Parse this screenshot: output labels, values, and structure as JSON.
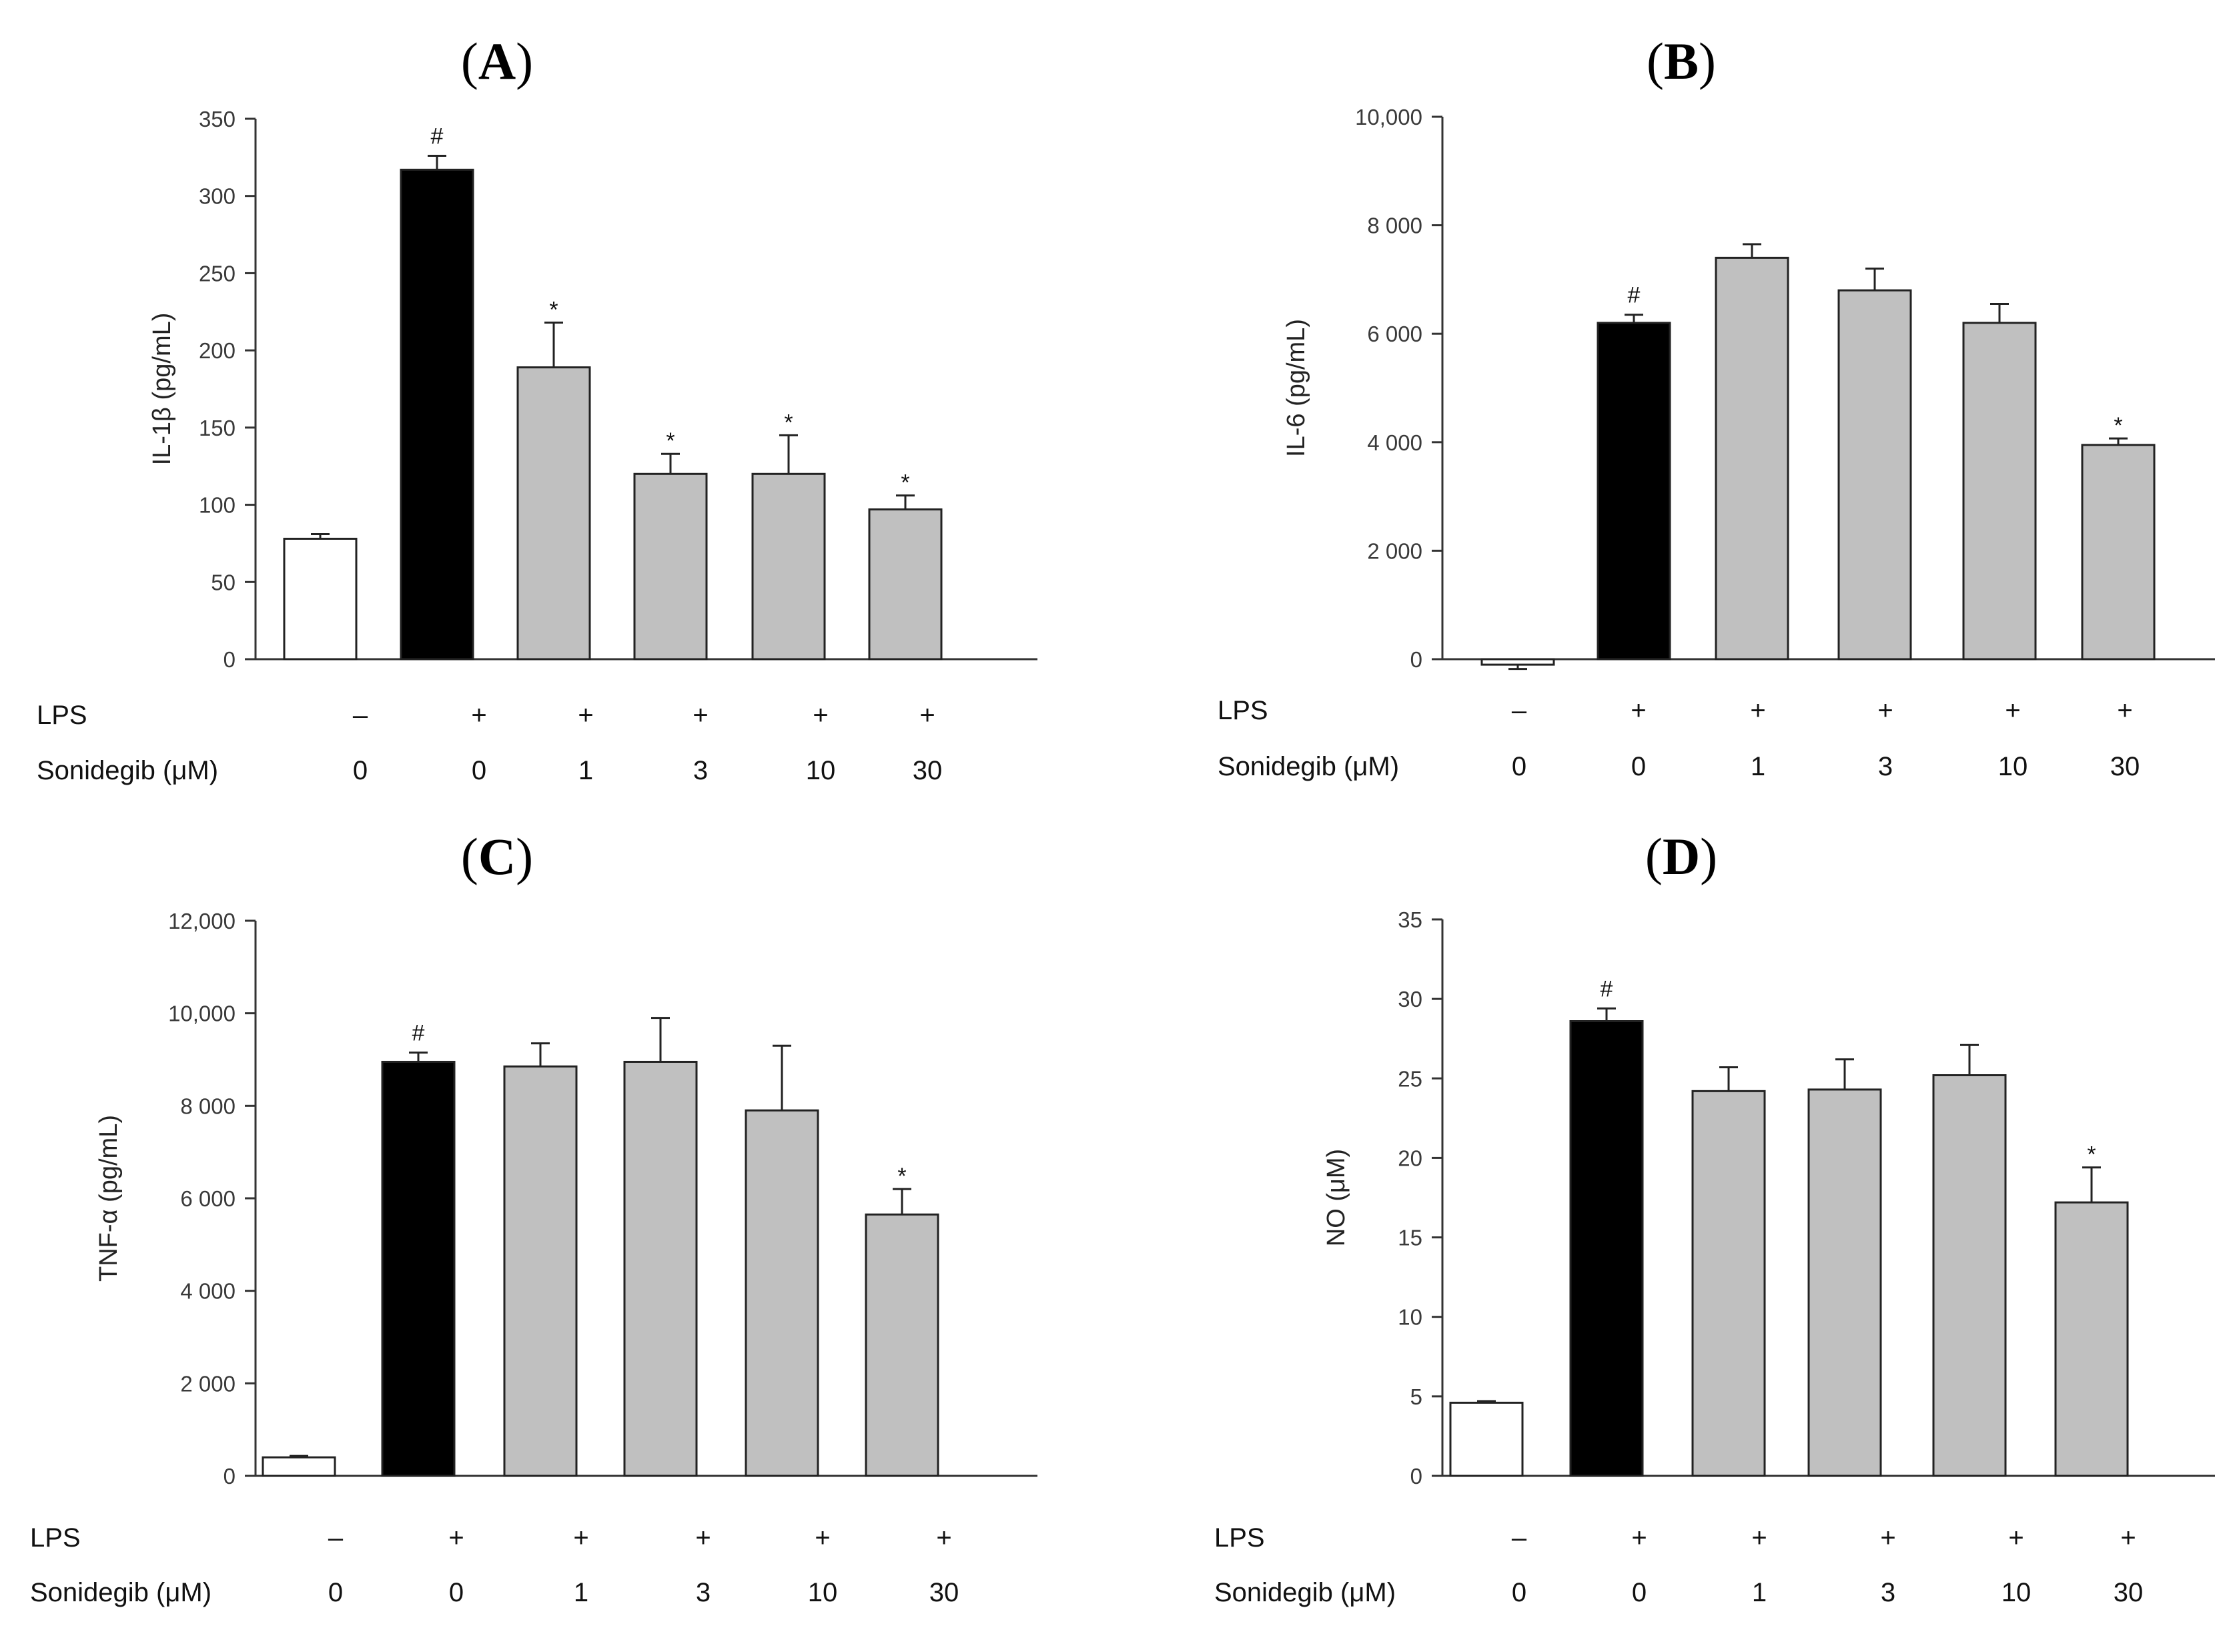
{
  "colors": {
    "control": "#ffffff",
    "lps": "#000000",
    "treatment": "#c0c0c0",
    "axis": "#333333"
  },
  "condition_rows": {
    "lps_label": "LPS",
    "sonidegib_label": "Sonidegib (μM)",
    "lps": [
      "–",
      "+",
      "+",
      "+",
      "+",
      "+"
    ],
    "sonidegib": [
      "0",
      "0",
      "1",
      "3",
      "10",
      "30"
    ]
  },
  "chart_data": [
    {
      "type": "bar",
      "panel": "A",
      "title": "(A)",
      "title_letter": "A",
      "ylabel": "IL-1β (pg/mL)",
      "ylim": [
        0,
        350
      ],
      "yticks": [
        0,
        50,
        100,
        150,
        200,
        250,
        300,
        350
      ],
      "ytick_labels": [
        "0",
        "50",
        "100",
        "150",
        "200",
        "250",
        "300",
        "350"
      ],
      "categories": [
        "Control",
        "LPS",
        "LPS + Sonidegib 1",
        "LPS + Sonidegib 3",
        "LPS + Sonidegib 10",
        "LPS + Sonidegib 30"
      ],
      "values": [
        78,
        317,
        189,
        120,
        120,
        97
      ],
      "errors": [
        3,
        9,
        29,
        13,
        25,
        9
      ],
      "fills": [
        "control",
        "lps",
        "treatment",
        "treatment",
        "treatment",
        "treatment"
      ],
      "significance": [
        "",
        "#",
        "*",
        "*",
        "*",
        "*"
      ]
    },
    {
      "type": "bar",
      "panel": "B",
      "title": "(B)",
      "title_letter": "B",
      "ylabel": "IL-6 (pg/mL)",
      "ylim": [
        0,
        10000
      ],
      "yticks": [
        0,
        2000,
        4000,
        6000,
        8000,
        10000
      ],
      "ytick_labels": [
        "0",
        "2 000",
        "4 000",
        "6 000",
        "8 000",
        "10,000"
      ],
      "categories": [
        "Control",
        "LPS",
        "LPS + Sonidegib 1",
        "LPS + Sonidegib 3",
        "LPS + Sonidegib 10",
        "LPS + Sonidegib 30"
      ],
      "values": [
        -100,
        6200,
        7400,
        6800,
        6200,
        3950
      ],
      "errors": [
        80,
        150,
        250,
        400,
        350,
        120
      ],
      "fills": [
        "control",
        "lps",
        "treatment",
        "treatment",
        "treatment",
        "treatment"
      ],
      "significance": [
        "",
        "#",
        "",
        "",
        "",
        "*"
      ]
    },
    {
      "type": "bar",
      "panel": "C",
      "title": "(C)",
      "title_letter": "C",
      "ylabel": "TNF-α (pg/mL)",
      "ylim": [
        0,
        12000
      ],
      "yticks": [
        0,
        2000,
        4000,
        6000,
        8000,
        10000,
        12000
      ],
      "ytick_labels": [
        "0",
        "2 000",
        "4 000",
        "6 000",
        "8 000",
        "10,000",
        "12,000"
      ],
      "categories": [
        "Control",
        "LPS",
        "LPS + Sonidegib 1",
        "LPS + Sonidegib 3",
        "LPS + Sonidegib 10",
        "LPS + Sonidegib 30"
      ],
      "values": [
        400,
        8950,
        8850,
        8950,
        7900,
        5650
      ],
      "errors": [
        30,
        200,
        500,
        950,
        1400,
        550
      ],
      "fills": [
        "control",
        "lps",
        "treatment",
        "treatment",
        "treatment",
        "treatment"
      ],
      "significance": [
        "",
        "#",
        "",
        "",
        "",
        "*"
      ]
    },
    {
      "type": "bar",
      "panel": "D",
      "title": "(D)",
      "title_letter": "D",
      "ylabel": "NO (μM)",
      "ylim": [
        0,
        35
      ],
      "yticks": [
        0,
        5,
        10,
        15,
        20,
        25,
        30,
        35
      ],
      "ytick_labels": [
        "0",
        "5",
        "10",
        "15",
        "20",
        "25",
        "30",
        "35"
      ],
      "categories": [
        "Control",
        "LPS",
        "LPS + Sonidegib 1",
        "LPS + Sonidegib 3",
        "LPS + Sonidegib 10",
        "LPS + Sonidegib 30"
      ],
      "values": [
        4.6,
        28.6,
        24.2,
        24.3,
        25.2,
        17.2
      ],
      "errors": [
        0.1,
        0.8,
        1.5,
        1.9,
        1.9,
        2.2
      ],
      "fills": [
        "control",
        "lps",
        "treatment",
        "treatment",
        "treatment",
        "treatment"
      ],
      "significance": [
        "",
        "#",
        "",
        "",
        "",
        "*"
      ]
    }
  ]
}
